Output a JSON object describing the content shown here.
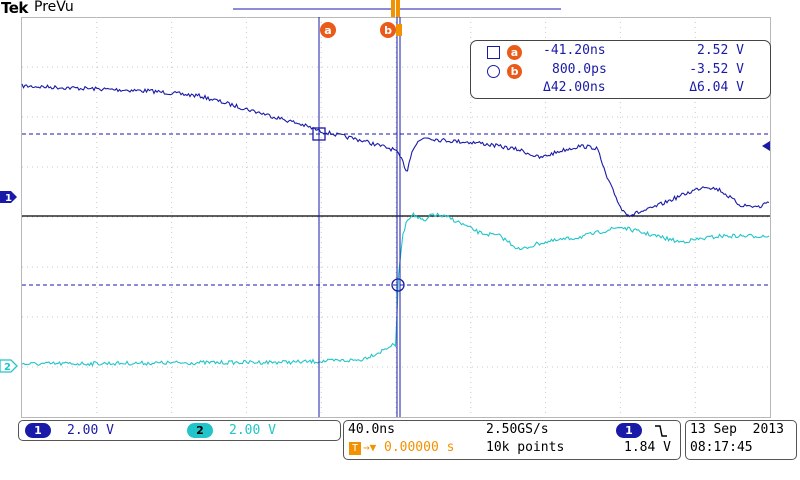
{
  "header": {
    "brand": "Tek",
    "acquisition_state": "PreVu"
  },
  "cursors": {
    "a": {
      "label": "a",
      "time": "-41.20ns",
      "voltage": "2.52 V"
    },
    "b": {
      "label": "b",
      "time": "800.0ps",
      "voltage": "-3.52 V"
    },
    "delta": {
      "time": "Δ42.00ns",
      "voltage": "Δ6.04 V"
    }
  },
  "channels": [
    {
      "number": "1",
      "scale": "2.00 V",
      "color": "#1a1aa8"
    },
    {
      "number": "2",
      "scale": "2.00 V",
      "color": "#21c5c9"
    }
  ],
  "timebase": {
    "scale": "40.0ns",
    "sample_rate": "2.50GS/s",
    "position": "0.00000 s",
    "record_length": "10k points"
  },
  "trigger": {
    "source": "1",
    "slope": "falling",
    "level": "1.84 V"
  },
  "clock": {
    "date": "13 Sep  2013",
    "time": "08:17:45"
  },
  "colors": {
    "cursor": "#ea5a18",
    "trigger": "#f39200"
  }
}
